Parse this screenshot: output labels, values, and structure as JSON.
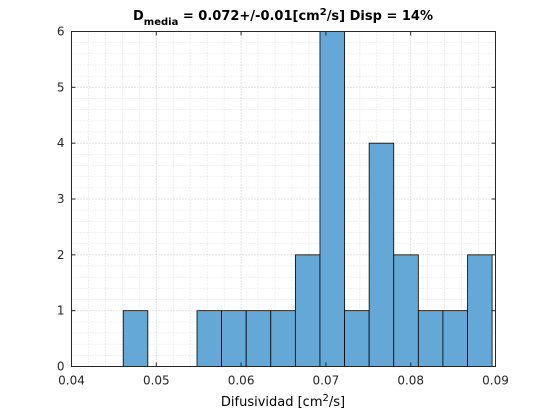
{
  "chart_data": {
    "type": "bar",
    "title": {
      "symbol": "D",
      "subscript": "media",
      "middle": " = 0.072+/-0.01[cm",
      "superscript": "2",
      "end": "/s]  Disp = 14%"
    },
    "xlabel": {
      "before": "Difusividad [cm",
      "superscript": "2",
      "after": "/s]"
    },
    "ylabel": "",
    "xlim": [
      0.04,
      0.09
    ],
    "ylim": [
      0,
      6
    ],
    "xticks": [
      0.04,
      0.05,
      0.06,
      0.07,
      0.08,
      0.09
    ],
    "xtick_labels": [
      "0.04",
      "0.05",
      "0.06",
      "0.07",
      "0.08",
      "0.09"
    ],
    "yticks": [
      0,
      1,
      2,
      3,
      4,
      5,
      6
    ],
    "ytick_labels": [
      "0",
      "1",
      "2",
      "3",
      "4",
      "5",
      "6"
    ],
    "grid": true,
    "minor_grid": true,
    "bar_color": "#64a8d8",
    "edge_color": "#000000",
    "bins": [
      {
        "start": 0.0461,
        "end": 0.049,
        "count": 1
      },
      {
        "start": 0.049,
        "end": 0.0519,
        "count": 0
      },
      {
        "start": 0.0519,
        "end": 0.0548,
        "count": 0
      },
      {
        "start": 0.0548,
        "end": 0.0577,
        "count": 1
      },
      {
        "start": 0.0577,
        "end": 0.0606,
        "count": 1
      },
      {
        "start": 0.0606,
        "end": 0.0635,
        "count": 1
      },
      {
        "start": 0.0635,
        "end": 0.0664,
        "count": 1
      },
      {
        "start": 0.0664,
        "end": 0.0693,
        "count": 2
      },
      {
        "start": 0.0693,
        "end": 0.0722,
        "count": 6
      },
      {
        "start": 0.0722,
        "end": 0.0751,
        "count": 1
      },
      {
        "start": 0.0751,
        "end": 0.078,
        "count": 4
      },
      {
        "start": 0.078,
        "end": 0.0809,
        "count": 2
      },
      {
        "start": 0.0809,
        "end": 0.0838,
        "count": 1
      },
      {
        "start": 0.0838,
        "end": 0.0867,
        "count": 1
      },
      {
        "start": 0.0867,
        "end": 0.0896,
        "count": 2
      }
    ]
  }
}
